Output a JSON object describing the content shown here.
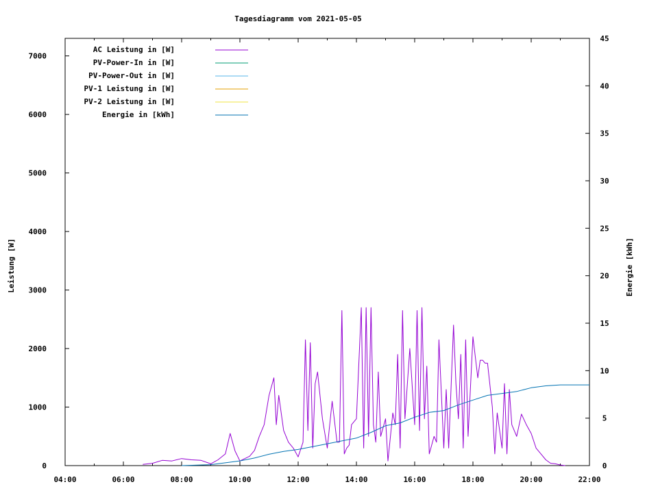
{
  "chart_data": {
    "type": "line",
    "title": "Tagesdiagramm vom 2021-05-05",
    "xlabel": "",
    "ylabel": "Leistung [W]",
    "y2label": "Energie [kWh]",
    "x_ticks": [
      "04:00",
      "06:00",
      "08:00",
      "10:00",
      "12:00",
      "14:00",
      "16:00",
      "18:00",
      "20:00",
      "22:00"
    ],
    "x_range_hours": [
      4,
      22
    ],
    "y_ticks": [
      "0",
      "1000",
      "2000",
      "3000",
      "4000",
      "5000",
      "6000",
      "7000"
    ],
    "ylim": [
      0,
      7300
    ],
    "y2_ticks": [
      "0",
      "5",
      "10",
      "15",
      "20",
      "25",
      "30",
      "35",
      "40",
      "45"
    ],
    "y2lim": [
      0,
      45
    ],
    "grid": false,
    "legend_position": "top-left",
    "legend": [
      {
        "label": "AC Leistung in [W]",
        "color": "#9400d3"
      },
      {
        "label": "PV-Power-In in [W]",
        "color": "#009e73"
      },
      {
        "label": "PV-Power-Out in [W]",
        "color": "#56b4e9"
      },
      {
        "label": "PV-1 Leistung in [W]",
        "color": "#e69f00"
      },
      {
        "label": "PV-2 Leistung in [W]",
        "color": "#f0e442"
      },
      {
        "label": "Energie in [kWh]",
        "color": "#0072b2"
      }
    ],
    "series": [
      {
        "name": "AC Leistung in [W]",
        "axis": "y",
        "color": "#9400d3",
        "x": [
          "06:40",
          "07:00",
          "07:20",
          "07:40",
          "08:00",
          "08:20",
          "08:40",
          "09:00",
          "09:15",
          "09:30",
          "09:40",
          "09:50",
          "10:00",
          "10:20",
          "10:30",
          "10:40",
          "10:50",
          "11:00",
          "11:10",
          "11:15",
          "11:20",
          "11:30",
          "11:40",
          "11:50",
          "12:00",
          "12:10",
          "12:15",
          "12:20",
          "12:25",
          "12:30",
          "12:35",
          "12:40",
          "12:50",
          "13:00",
          "13:10",
          "13:20",
          "13:25",
          "13:30",
          "13:35",
          "13:40",
          "13:45",
          "13:50",
          "14:00",
          "14:10",
          "14:15",
          "14:20",
          "14:25",
          "14:30",
          "14:35",
          "14:40",
          "14:45",
          "14:50",
          "15:00",
          "15:05",
          "15:15",
          "15:20",
          "15:25",
          "15:30",
          "15:35",
          "15:40",
          "15:50",
          "16:00",
          "16:05",
          "16:10",
          "16:15",
          "16:20",
          "16:25",
          "16:30",
          "16:40",
          "16:45",
          "16:50",
          "17:00",
          "17:05",
          "17:10",
          "17:20",
          "17:25",
          "17:30",
          "17:35",
          "17:40",
          "17:45",
          "17:50",
          "18:00",
          "18:10",
          "18:15",
          "18:20",
          "18:25",
          "18:30",
          "18:40",
          "18:45",
          "18:50",
          "19:00",
          "19:05",
          "19:10",
          "19:15",
          "19:20",
          "19:30",
          "19:40",
          "19:50",
          "20:00",
          "20:10",
          "20:20",
          "20:30",
          "20:40",
          "20:50",
          "21:00",
          "21:10"
        ],
        "values": [
          20,
          40,
          90,
          80,
          120,
          100,
          90,
          30,
          100,
          200,
          550,
          250,
          80,
          160,
          260,
          500,
          700,
          1200,
          1500,
          700,
          1200,
          600,
          400,
          300,
          150,
          400,
          2150,
          600,
          2100,
          300,
          1400,
          1600,
          800,
          300,
          1100,
          400,
          400,
          2650,
          200,
          300,
          350,
          700,
          800,
          2700,
          300,
          2700,
          500,
          2700,
          700,
          400,
          1600,
          500,
          800,
          80,
          900,
          700,
          1900,
          300,
          2650,
          800,
          2000,
          700,
          2650,
          600,
          2700,
          800,
          1700,
          200,
          500,
          400,
          2150,
          300,
          1300,
          300,
          2400,
          1400,
          800,
          1900,
          300,
          2150,
          500,
          2200,
          1500,
          1800,
          1800,
          1750,
          1750,
          1000,
          200,
          900,
          300,
          1400,
          200,
          1300,
          700,
          500,
          880,
          700,
          550,
          300,
          200,
          100,
          40,
          30,
          10,
          0
        ]
      },
      {
        "name": "Energie in [kWh]",
        "axis": "y2",
        "color": "#0072b2",
        "x": [
          "08:00",
          "09:00",
          "10:00",
          "10:30",
          "11:00",
          "11:30",
          "12:00",
          "12:30",
          "13:00",
          "13:30",
          "14:00",
          "14:30",
          "15:00",
          "15:30",
          "16:00",
          "16:30",
          "17:00",
          "17:30",
          "18:00",
          "18:30",
          "19:00",
          "19:30",
          "20:00",
          "20:30",
          "21:00",
          "22:00"
        ],
        "values": [
          0.0,
          0.1,
          0.5,
          0.8,
          1.2,
          1.5,
          1.7,
          2.0,
          2.3,
          2.6,
          2.9,
          3.5,
          4.2,
          4.5,
          5.1,
          5.6,
          5.8,
          6.4,
          6.9,
          7.4,
          7.6,
          7.8,
          8.2,
          8.4,
          8.5,
          8.5
        ]
      }
    ]
  }
}
